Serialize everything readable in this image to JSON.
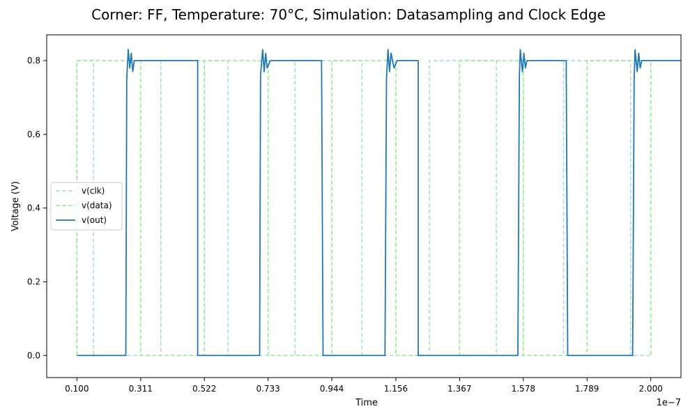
{
  "chart_data": {
    "type": "line",
    "title": "Corner: FF, Temperature: 70°C, Simulation: Datasampling and Clock Edge",
    "xlabel": "Time",
    "ylabel": "Voltage (V)",
    "x_scale_label": "1e−7",
    "xlim": [
      0.0,
      2.1
    ],
    "ylim": [
      -0.06,
      0.87
    ],
    "x_ticks": [
      0.1,
      0.311,
      0.522,
      0.733,
      0.944,
      1.156,
      1.367,
      1.578,
      1.789,
      2.0
    ],
    "x_tick_labels": [
      "0.100",
      "0.311",
      "0.522",
      "0.733",
      "0.944",
      "1.156",
      "1.367",
      "1.578",
      "1.789",
      "2.000"
    ],
    "y_ticks": [
      0.0,
      0.2,
      0.4,
      0.6,
      0.8
    ],
    "y_tick_labels": [
      "0.0",
      "0.2",
      "0.4",
      "0.6",
      "0.8"
    ],
    "grid": false,
    "legend_position": "center-left",
    "series": [
      {
        "name": "v(clk)",
        "color": "#add8e6",
        "dash": "dashed",
        "x": [
          0.1,
          0.1,
          0.155,
          0.155,
          0.378,
          0.378,
          0.6,
          0.6,
          0.822,
          0.822,
          1.044,
          1.044,
          1.267,
          1.267,
          1.489,
          1.489,
          1.711,
          1.711,
          1.933,
          1.933,
          2.0
        ],
        "y": [
          0.0,
          0.8,
          0.8,
          0.0,
          0.0,
          0.8,
          0.8,
          0.0,
          0.0,
          0.8,
          0.8,
          0.0,
          0.0,
          0.8,
          0.8,
          0.0,
          0.0,
          0.8,
          0.8,
          0.0,
          0.0
        ]
      },
      {
        "name": "v(data)",
        "color": "#90ee90",
        "dash": "dashed",
        "x": [
          0.1,
          0.1,
          0.311,
          0.311,
          0.522,
          0.522,
          0.733,
          0.733,
          0.944,
          0.944,
          1.156,
          1.156,
          1.367,
          1.367,
          1.578,
          1.578,
          1.789,
          1.789,
          2.0,
          2.0
        ],
        "y": [
          0.0,
          0.8,
          0.8,
          0.0,
          0.0,
          0.8,
          0.8,
          0.0,
          0.0,
          0.8,
          0.8,
          0.0,
          0.0,
          0.8,
          0.8,
          0.0,
          0.0,
          0.8,
          0.8,
          0.0
        ]
      },
      {
        "name": "v(out)",
        "color": "#1f77b4",
        "dash": "solid",
        "x": [
          0.1,
          0.25,
          0.262,
          0.265,
          0.27,
          0.275,
          0.28,
          0.285,
          0.29,
          0.3,
          0.31,
          0.32,
          0.33,
          0.34,
          0.345,
          0.35,
          0.36,
          0.37,
          0.38,
          0.39,
          0.4,
          0.41,
          0.42,
          0.45,
          0.5,
          0.5,
          0.505,
          0.51,
          0.52,
          0.53,
          0.54,
          0.55,
          0.65,
          0.7,
          0.705,
          0.708,
          0.715,
          0.72,
          0.725,
          0.73,
          0.74,
          0.75,
          0.76,
          0.77,
          0.78,
          0.79,
          0.8,
          0.81,
          0.82,
          0.91,
          0.915,
          0.92,
          0.925,
          0.93,
          0.94,
          0.95,
          0.96,
          0.97,
          1.12,
          1.125,
          1.13,
          1.135,
          1.14,
          1.15,
          1.16,
          1.165,
          1.17,
          1.18,
          1.23,
          1.23,
          1.232,
          1.24,
          1.3,
          1.4,
          1.5,
          1.56,
          1.565,
          1.568,
          1.575,
          1.58,
          1.585,
          1.59,
          1.6,
          1.61,
          1.62,
          1.63,
          1.64,
          1.65,
          1.66,
          1.67,
          1.68,
          1.72,
          1.725,
          1.73,
          1.735,
          1.74,
          1.745,
          1.75,
          1.76,
          1.77,
          1.94,
          1.945,
          1.948,
          1.955,
          1.96,
          1.965,
          1.97,
          1.98,
          1.99,
          2.0,
          2.01,
          2.02,
          2.03,
          2.04,
          2.05,
          2.06,
          2.07,
          2.08,
          2.09,
          2.1,
          2.11,
          2.12,
          2.13,
          2.14,
          2.15,
          2.16,
          2.17,
          2.18,
          2.19,
          2.2
        ],
        "y": [
          0.0,
          0.0,
          0.0,
          0.75,
          0.83,
          0.78,
          0.82,
          0.77,
          0.8,
          0.8,
          0.8,
          0.8,
          0.8,
          0.8,
          0.8,
          0.8,
          0.8,
          0.8,
          0.8,
          0.8,
          0.8,
          0.8,
          0.8,
          0.8,
          0.8,
          0.0,
          0.0,
          0.0,
          0.0,
          0.0,
          0.0,
          0.0,
          0.0,
          0.0,
          0.0,
          0.76,
          0.83,
          0.77,
          0.82,
          0.78,
          0.8,
          0.8,
          0.8,
          0.8,
          0.8,
          0.8,
          0.8,
          0.8,
          0.8,
          0.8,
          0.0,
          0.0,
          0.0,
          0.0,
          0.0,
          0.0,
          0.0,
          0.0,
          0.0,
          0.75,
          0.83,
          0.77,
          0.82,
          0.78,
          0.8,
          0.8,
          0.8,
          0.8,
          0.8,
          0.0,
          0.0,
          0.0,
          0.0,
          0.0,
          0.0,
          0.0,
          0.76,
          0.83,
          0.77,
          0.82,
          0.78,
          0.8,
          0.8,
          0.8,
          0.8,
          0.8,
          0.8,
          0.8,
          0.8,
          0.8,
          0.8,
          0.8,
          0.0,
          0.0,
          0.0,
          0.0,
          0.0,
          0.0,
          0.0,
          0.0,
          0.0,
          0.75,
          0.83,
          0.77,
          0.82,
          0.78,
          0.8,
          0.8,
          0.8,
          0.8,
          0.8,
          0.8,
          0.8,
          0.8,
          0.8,
          0.8,
          0.8,
          0.8,
          0.8,
          0.8,
          0.8,
          0.8,
          0.8,
          0.8,
          0.8,
          0.8,
          0.8,
          0.8,
          0.8,
          0.8
        ]
      }
    ]
  }
}
